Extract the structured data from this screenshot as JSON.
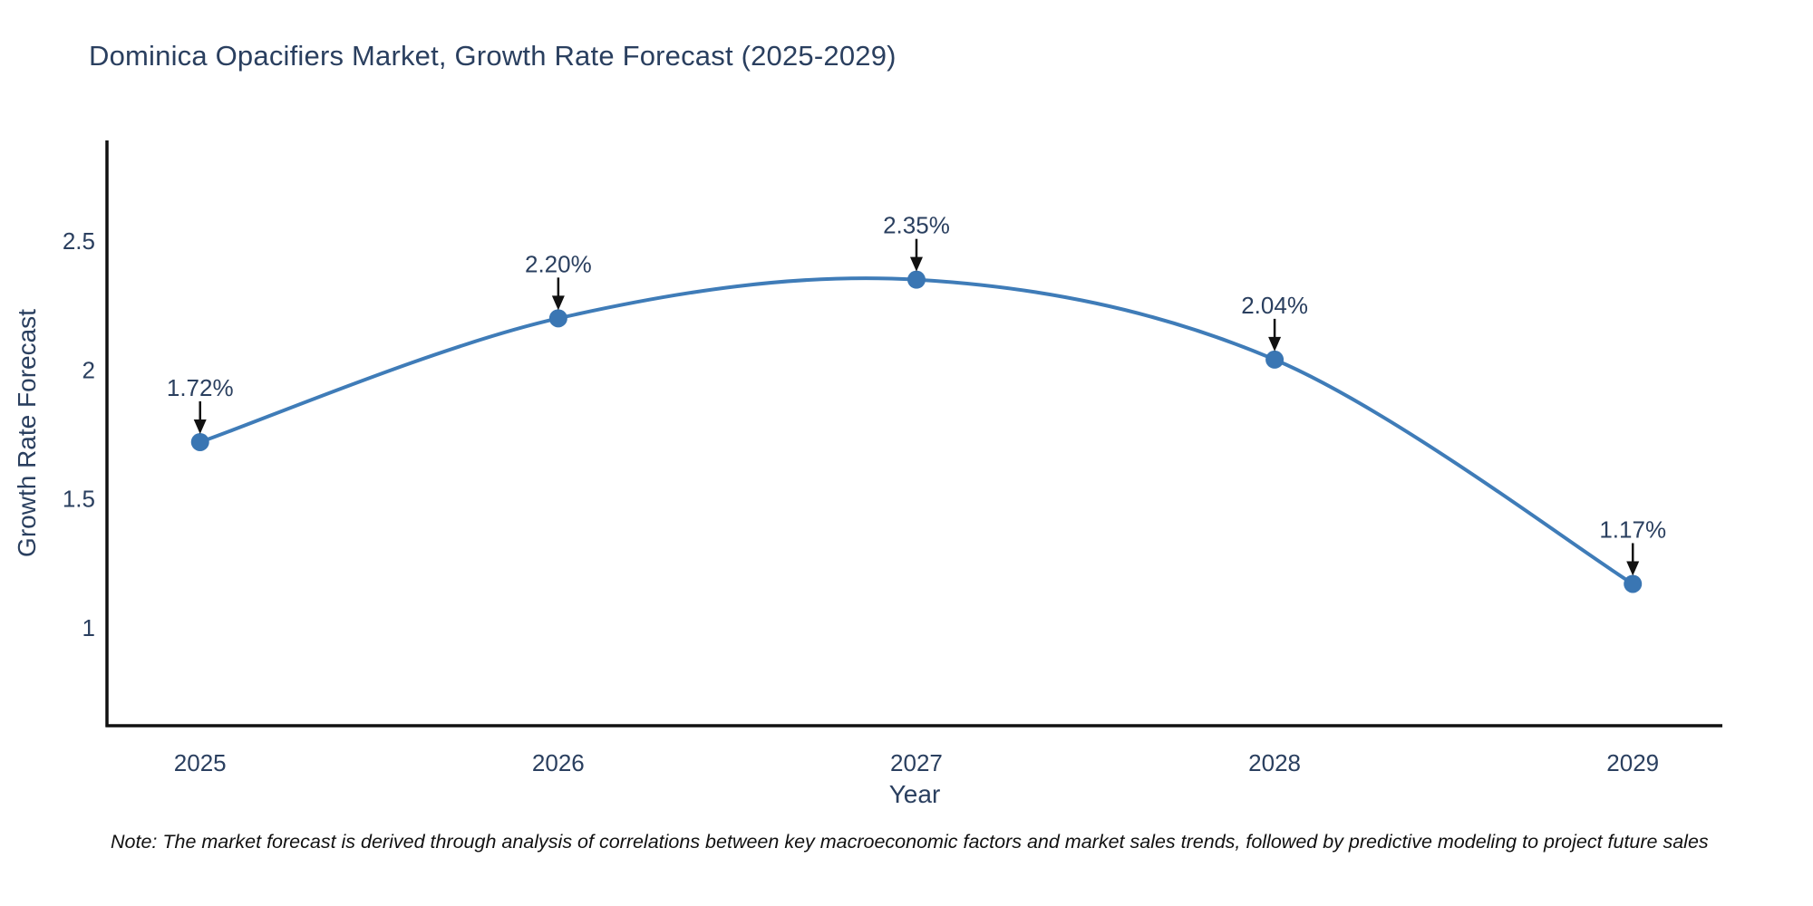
{
  "title": "Dominica Opacifiers Market, Growth Rate Forecast (2025-2029)",
  "note": "Note: The market forecast is derived through analysis of correlations between key macroeconomic factors and market sales trends, followed by predictive modeling to project future sales",
  "chart_data": {
    "type": "line",
    "title": "Dominica Opacifiers Market, Growth Rate Forecast (2025-2029)",
    "xlabel": "Year",
    "ylabel": "Growth Rate Forecast",
    "x": [
      2025,
      2026,
      2027,
      2028,
      2029
    ],
    "values": [
      1.72,
      2.2,
      2.35,
      2.04,
      1.17
    ],
    "point_labels": [
      "1.72%",
      "2.20%",
      "2.35%",
      "2.04%",
      "1.17%"
    ],
    "x_tick_labels": [
      "2025",
      "2026",
      "2027",
      "2028",
      "2029"
    ],
    "y_ticks": [
      1,
      1.5,
      2,
      2.5
    ],
    "y_tick_labels": [
      "1",
      "1.5",
      "2",
      "2.5"
    ],
    "xlim": [
      2024.74,
      2029.25
    ],
    "ylim": [
      0.62,
      2.89
    ],
    "line_shape": "spline",
    "grid": false,
    "legend": "none",
    "colors": {
      "line": "#3f7cb8",
      "marker": "#3a76b3",
      "axis": "#111111",
      "tick_text": "#2a3f5f",
      "title_text": "#2a3f5f",
      "annotation_arrow": "#111111",
      "note_text": "#111111"
    }
  }
}
